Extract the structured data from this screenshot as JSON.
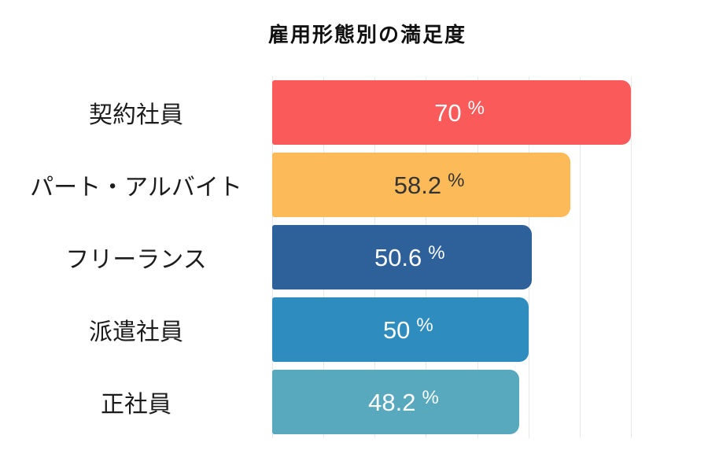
{
  "title": "雇用形態別の満足度",
  "chart_data": {
    "type": "bar",
    "orientation": "horizontal",
    "title": "雇用形態別の満足度",
    "categories": [
      "契約社員",
      "パート・アルバイト",
      "フリーランス",
      "派遣社員",
      "正社員"
    ],
    "values": [
      70,
      58.2,
      50.6,
      50,
      48.2
    ],
    "value_labels": [
      "70",
      "58.2",
      "50.6",
      "50",
      "48.2"
    ],
    "unit": "%",
    "xlim": [
      0,
      70
    ],
    "grid_step": 10,
    "grid_on": true,
    "legend": "none",
    "xlabel": "",
    "ylabel": "",
    "colors": {
      "bars": [
        "#fb5a5a",
        "#fcba59",
        "#2e6199",
        "#2e8cbe",
        "#58a9be"
      ],
      "value_text": [
        "#ffffff",
        "#333333",
        "#ffffff",
        "#ffffff",
        "#ffffff"
      ],
      "grid": "#e8e8e8",
      "title_text": "#111111",
      "category_text": "#1c1c1c",
      "background": "#ffffff"
    }
  }
}
